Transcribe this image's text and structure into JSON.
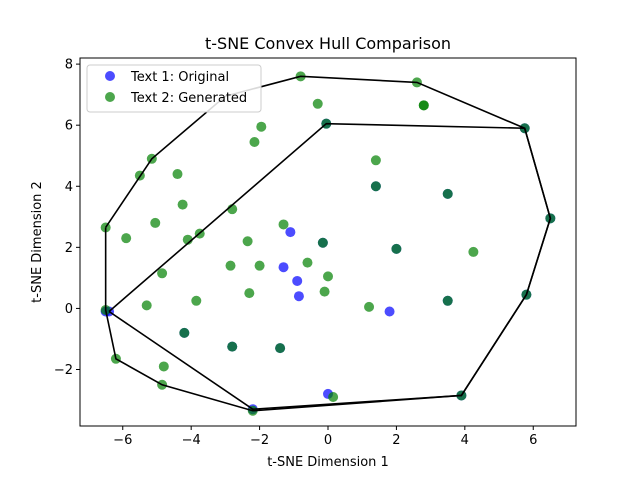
{
  "chart_data": {
    "type": "scatter",
    "title": "t-SNE Convex Hull Comparison",
    "xlabel": "t-SNE Dimension 1",
    "ylabel": "t-SNE Dimension 2",
    "xlim": [
      -7.25,
      7.25
    ],
    "ylim": [
      -3.85,
      8.2
    ],
    "xticks": [
      -6,
      -4,
      -2,
      0,
      2,
      4,
      6
    ],
    "yticks": [
      -2,
      0,
      2,
      4,
      6,
      8
    ],
    "xtick_labels": [
      "−6",
      "−4",
      "−2",
      "0",
      "2",
      "4",
      "6"
    ],
    "ytick_labels": [
      "−2",
      "0",
      "2",
      "4",
      "6",
      "8"
    ],
    "grid": false,
    "legend_position": "top-left",
    "series": [
      {
        "name": "Text 1: Original",
        "color": "#0000ff",
        "points": [
          [
            -6.5,
            -0.1
          ],
          [
            -6.4,
            -0.1
          ],
          [
            -4.2,
            -0.8
          ],
          [
            -2.8,
            -1.25
          ],
          [
            -2.2,
            -3.3
          ],
          [
            -1.4,
            -1.3
          ],
          [
            -1.1,
            2.5
          ],
          [
            -1.3,
            1.35
          ],
          [
            -0.9,
            0.9
          ],
          [
            -0.85,
            0.4
          ],
          [
            -0.15,
            2.15
          ],
          [
            0.0,
            -2.8
          ],
          [
            1.4,
            4.0
          ],
          [
            1.8,
            -0.1
          ],
          [
            2.0,
            1.95
          ],
          [
            3.5,
            3.75
          ],
          [
            3.5,
            0.25
          ],
          [
            3.9,
            -2.85
          ],
          [
            5.75,
            5.9
          ],
          [
            5.8,
            0.45
          ],
          [
            6.5,
            2.95
          ],
          [
            -0.05,
            6.05
          ]
        ]
      },
      {
        "name": "Text 2: Generated",
        "color": "#008000",
        "points": [
          [
            -6.5,
            2.65
          ],
          [
            -6.5,
            -0.05
          ],
          [
            -6.2,
            -1.65
          ],
          [
            -5.9,
            2.3
          ],
          [
            -5.5,
            4.35
          ],
          [
            -5.15,
            4.9
          ],
          [
            -5.05,
            2.8
          ],
          [
            -4.85,
            1.15
          ],
          [
            -4.8,
            -1.9
          ],
          [
            -4.85,
            -2.5
          ],
          [
            -5.3,
            0.1
          ],
          [
            -4.4,
            4.4
          ],
          [
            -4.25,
            3.4
          ],
          [
            -4.1,
            2.25
          ],
          [
            -3.85,
            0.25
          ],
          [
            -3.75,
            2.45
          ],
          [
            -2.8,
            3.25
          ],
          [
            -2.85,
            1.4
          ],
          [
            -2.35,
            2.2
          ],
          [
            -2.3,
            0.5
          ],
          [
            -2.15,
            5.45
          ],
          [
            -1.95,
            5.95
          ],
          [
            -2.0,
            1.4
          ],
          [
            -1.3,
            2.75
          ],
          [
            -0.6,
            1.5
          ],
          [
            -0.8,
            7.6
          ],
          [
            -0.3,
            6.7
          ],
          [
            0.0,
            1.05
          ],
          [
            -0.1,
            0.55
          ],
          [
            0.15,
            -2.9
          ],
          [
            -0.05,
            6.05
          ],
          [
            1.4,
            4.85
          ],
          [
            1.2,
            0.05
          ],
          [
            2.8,
            6.65
          ],
          [
            2.8,
            6.65
          ],
          [
            2.6,
            7.4
          ],
          [
            -2.2,
            -3.35
          ],
          [
            -2.8,
            -1.25
          ],
          [
            -1.4,
            -1.3
          ],
          [
            -4.2,
            -0.8
          ],
          [
            -0.15,
            2.15
          ],
          [
            1.4,
            4.0
          ],
          [
            2.0,
            1.95
          ],
          [
            3.5,
            3.75
          ],
          [
            3.5,
            0.25
          ],
          [
            3.9,
            -2.85
          ],
          [
            4.25,
            1.85
          ],
          [
            5.75,
            5.9
          ],
          [
            5.8,
            0.45
          ],
          [
            6.5,
            2.95
          ]
        ]
      }
    ],
    "hulls": [
      {
        "series": "Text 1: Original",
        "color": "#000000",
        "points": [
          [
            -6.4,
            -0.1
          ],
          [
            -0.05,
            6.05
          ],
          [
            5.75,
            5.9
          ],
          [
            6.5,
            2.95
          ],
          [
            5.8,
            0.45
          ],
          [
            3.9,
            -2.85
          ],
          [
            -2.2,
            -3.3
          ],
          [
            -6.4,
            -0.1
          ]
        ]
      },
      {
        "series": "Text 2: Generated",
        "color": "#000000",
        "points": [
          [
            -6.5,
            2.65
          ],
          [
            -5.15,
            4.9
          ],
          [
            -3.0,
            6.95
          ],
          [
            -0.8,
            7.6
          ],
          [
            2.6,
            7.4
          ],
          [
            5.75,
            5.9
          ],
          [
            6.5,
            2.95
          ],
          [
            5.8,
            0.45
          ],
          [
            3.9,
            -2.85
          ],
          [
            -2.2,
            -3.35
          ],
          [
            -4.85,
            -2.5
          ],
          [
            -6.2,
            -1.65
          ],
          [
            -6.5,
            -0.05
          ],
          [
            -6.5,
            2.65
          ]
        ]
      }
    ]
  }
}
